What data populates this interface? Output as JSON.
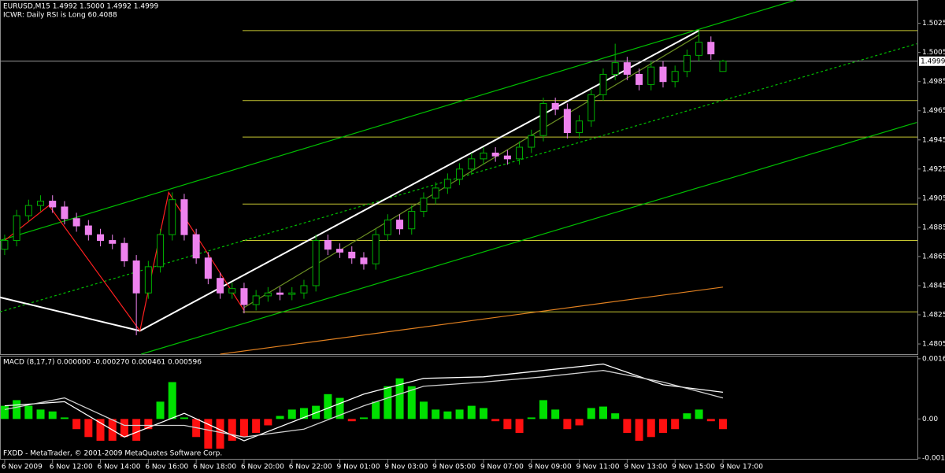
{
  "chart_data": [
    {
      "type": "candlestick",
      "title": "EURUSD,M15  1.4992 1.5000 1.4992 1.4999",
      "subtitle": "ICWR: Daily RSI is Long 60.4088",
      "open": [
        1.487,
        1.4876,
        1.4893,
        1.49,
        1.4903,
        1.4899,
        1.4891,
        1.4886,
        1.488,
        1.4876,
        1.4874,
        1.4862,
        1.484,
        1.4858,
        1.488,
        1.4904,
        1.488,
        1.4864,
        1.485,
        1.484,
        1.4843,
        1.4832,
        1.4838,
        1.484,
        1.4839,
        1.484,
        1.4845,
        1.4876,
        1.487,
        1.4868,
        1.4864,
        1.486,
        1.488,
        1.489,
        1.4884,
        1.4896,
        1.4905,
        1.4912,
        1.4918,
        1.4925,
        1.4932,
        1.4936,
        1.4934,
        1.4932,
        1.494,
        1.4948,
        1.497,
        1.4966,
        1.495,
        1.4958,
        1.4976,
        1.499,
        1.4998,
        1.499,
        1.4983,
        1.4995,
        1.4985,
        1.4992,
        1.5003,
        1.5012,
        1.4992
      ],
      "high": [
        1.488,
        1.4897,
        1.4904,
        1.4907,
        1.4907,
        1.4903,
        1.4895,
        1.489,
        1.4884,
        1.488,
        1.4878,
        1.4866,
        1.4862,
        1.4884,
        1.4909,
        1.4908,
        1.4884,
        1.4868,
        1.4854,
        1.4847,
        1.4847,
        1.4842,
        1.4844,
        1.4844,
        1.4844,
        1.4849,
        1.488,
        1.488,
        1.4874,
        1.4872,
        1.4868,
        1.4884,
        1.4894,
        1.4894,
        1.49,
        1.4909,
        1.4916,
        1.4922,
        1.4929,
        1.4936,
        1.494,
        1.494,
        1.4938,
        1.4944,
        1.4952,
        1.4974,
        1.4974,
        1.497,
        1.4962,
        1.498,
        1.4994,
        1.5011,
        1.5002,
        1.4994,
        1.4999,
        1.4999,
        1.4996,
        1.5007,
        1.502,
        1.5016,
        1.5
      ],
      "low": [
        1.4866,
        1.4872,
        1.4889,
        1.4896,
        1.4895,
        1.4887,
        1.4882,
        1.4876,
        1.4872,
        1.487,
        1.4858,
        1.4811,
        1.4836,
        1.4854,
        1.4876,
        1.4876,
        1.486,
        1.4846,
        1.4836,
        1.4836,
        1.4826,
        1.4828,
        1.4834,
        1.4835,
        1.4835,
        1.4836,
        1.4841,
        1.4866,
        1.4864,
        1.486,
        1.4856,
        1.4856,
        1.4876,
        1.488,
        1.488,
        1.4892,
        1.4901,
        1.4908,
        1.4914,
        1.4921,
        1.4928,
        1.493,
        1.4928,
        1.4928,
        1.4936,
        1.4944,
        1.4962,
        1.4946,
        1.4946,
        1.4954,
        1.4972,
        1.4986,
        1.4986,
        1.4979,
        1.4979,
        1.4981,
        1.4981,
        1.4988,
        1.4999,
        1.5,
        1.4992
      ],
      "close": [
        1.4876,
        1.4893,
        1.49,
        1.4903,
        1.4899,
        1.4891,
        1.4886,
        1.488,
        1.4876,
        1.4874,
        1.4862,
        1.484,
        1.4858,
        1.488,
        1.4904,
        1.488,
        1.4864,
        1.485,
        1.484,
        1.4843,
        1.4832,
        1.4838,
        1.484,
        1.4839,
        1.484,
        1.4845,
        1.4876,
        1.487,
        1.4868,
        1.4864,
        1.486,
        1.488,
        1.489,
        1.4884,
        1.4896,
        1.4905,
        1.4912,
        1.4918,
        1.4925,
        1.4932,
        1.4936,
        1.4934,
        1.4932,
        1.494,
        1.4948,
        1.497,
        1.4966,
        1.495,
        1.4958,
        1.4976,
        1.499,
        1.4998,
        1.499,
        1.4983,
        1.4995,
        1.4985,
        1.4992,
        1.5003,
        1.5012,
        1.5004,
        1.4999
      ],
      "up_color": "#00b000",
      "down_color": "#ee82ee",
      "xlim": [
        -0.39,
        76.25
      ],
      "ylim": [
        1.4798,
        1.5041
      ],
      "yticks": [
        1.5025,
        1.5005,
        1.4985,
        1.4965,
        1.4945,
        1.4925,
        1.4905,
        1.4885,
        1.4865,
        1.4845,
        1.4825,
        1.4805
      ],
      "hlines": {
        "color": "#c8c832",
        "values": [
          1.502,
          1.4972,
          1.4947,
          1.4901,
          1.4876,
          1.4827
        ]
      },
      "trendlines": [
        {
          "color": "#00c000",
          "style": "solid",
          "x": [
            -0.4,
            66.1
          ],
          "y": [
            1.4876,
            1.5041
          ]
        },
        {
          "color": "#00c000",
          "style": "dashed",
          "x": [
            -0.4,
            76.2
          ],
          "y": [
            1.4827,
            1.5011
          ]
        },
        {
          "color": "#00c000",
          "style": "solid",
          "x": [
            11.4,
            76.2
          ],
          "y": [
            1.4798,
            1.4957
          ]
        },
        {
          "color": "#e08020",
          "style": "solid",
          "x": [
            18.0,
            60
          ],
          "y": [
            1.4798,
            1.4844
          ]
        },
        {
          "color": "#ffffff",
          "style": "solid",
          "x": [
            11.3,
            58
          ],
          "y": [
            1.4814,
            1.502
          ]
        },
        {
          "color": "#ffffff",
          "style": "solid",
          "x": [
            -0.4,
            11.3
          ],
          "y": [
            1.4837,
            1.4814
          ]
        },
        {
          "color": "#ff2020",
          "style": "solid",
          "x": [
            0,
            3.7,
            11.3,
            13.7,
            20
          ],
          "y": [
            1.4876,
            1.49,
            1.4814,
            1.4909,
            1.4828
          ]
        },
        {
          "color": "#6b8e23",
          "style": "solid",
          "x": [
            20,
            58
          ],
          "y": [
            1.483,
            1.5017
          ]
        }
      ],
      "last_price": 1.4999
    },
    {
      "type": "macd",
      "title": "MACD (8,17,7) 0.000000 -0.000270 0.000461 0.000596",
      "annotation": "FXDD - MetaTrader, © 2001-2009 MetaQuotes Software Corp.",
      "values": [
        0.00035,
        0.0005,
        0.00035,
        0.00025,
        0.0002,
        4e-05,
        -0.00027,
        -0.00048,
        -0.00058,
        -0.00058,
        -0.00048,
        -0.00058,
        -0.00027,
        0.00046,
        0.00098,
        4e-05,
        -0.00048,
        -0.00079,
        -0.00079,
        -0.00058,
        -0.00048,
        -0.00037,
        -0.00017,
        8e-05,
        0.00025,
        0.00029,
        0.00035,
        0.00066,
        0.00056,
        -6e-05,
        4e-05,
        0.00046,
        0.00087,
        0.00108,
        0.00087,
        0.00046,
        0.00025,
        0.0002,
        0.00025,
        0.00035,
        0.00029,
        -6e-05,
        -0.00027,
        -0.00037,
        4e-05,
        0.0005,
        0.00025,
        -0.00027,
        -0.00017,
        0.00029,
        0.00033,
        0.00015,
        -0.00037,
        -0.00058,
        -0.00048,
        -0.00037,
        -0.00027,
        0.00015,
        0.00025,
        -6e-05,
        -0.00027
      ],
      "pos_color": "#00e000",
      "neg_color": "#ff1010",
      "lines": [
        {
          "color": "#ffffff",
          "x": [
            0,
            5,
            10,
            15,
            20,
            25,
            30,
            35,
            40,
            45,
            50,
            55,
            60
          ],
          "values": [
            0.00035,
            0.00046,
            -0.00048,
            0.00015,
            -0.00058,
            4e-05,
            0.00066,
            0.00108,
            0.00112,
            0.00129,
            0.00146,
            0.00091,
            0.00071
          ]
        },
        {
          "color": "#d0d0d0",
          "x": [
            0,
            5,
            10,
            15,
            20,
            25,
            30,
            35,
            40,
            45,
            50,
            55,
            60
          ],
          "values": [
            0.00025,
            0.00056,
            -0.00017,
            -0.00017,
            -0.00048,
            -0.00027,
            0.00035,
            0.00087,
            0.00098,
            0.00112,
            0.00129,
            0.00098,
            0.00056
          ]
        }
      ],
      "xlim": [
        -0.39,
        76.25
      ],
      "ylim": [
        -0.00106,
        0.00166
      ],
      "yticks": [
        0.0016,
        {
          "value": 0,
          "label": "0.00"
        },
        -0.00104
      ],
      "xticks": [
        {
          "value": 0,
          "label": "6 Nov 2009"
        },
        {
          "value": 4,
          "label": "6 Nov 12:00"
        },
        {
          "value": 8,
          "label": "6 Nov 14:00"
        },
        {
          "value": 12,
          "label": "6 Nov 16:00"
        },
        {
          "value": 16,
          "label": "6 Nov 18:00"
        },
        {
          "value": 20,
          "label": "6 Nov 20:00"
        },
        {
          "value": 24,
          "label": "6 Nov 22:00"
        },
        {
          "value": 28,
          "label": "9 Nov 01:00"
        },
        {
          "value": 32,
          "label": "9 Nov 03:00"
        },
        {
          "value": 36,
          "label": "9 Nov 05:00"
        },
        {
          "value": 40,
          "label": "9 Nov 07:00"
        },
        {
          "value": 44,
          "label": "9 Nov 09:00"
        },
        {
          "value": 48,
          "label": "9 Nov 11:00"
        },
        {
          "value": 52,
          "label": "9 Nov 13:00"
        },
        {
          "value": 56,
          "label": "9 Nov 15:00"
        },
        {
          "value": 60,
          "label": "9 Nov 17:00"
        }
      ]
    }
  ]
}
